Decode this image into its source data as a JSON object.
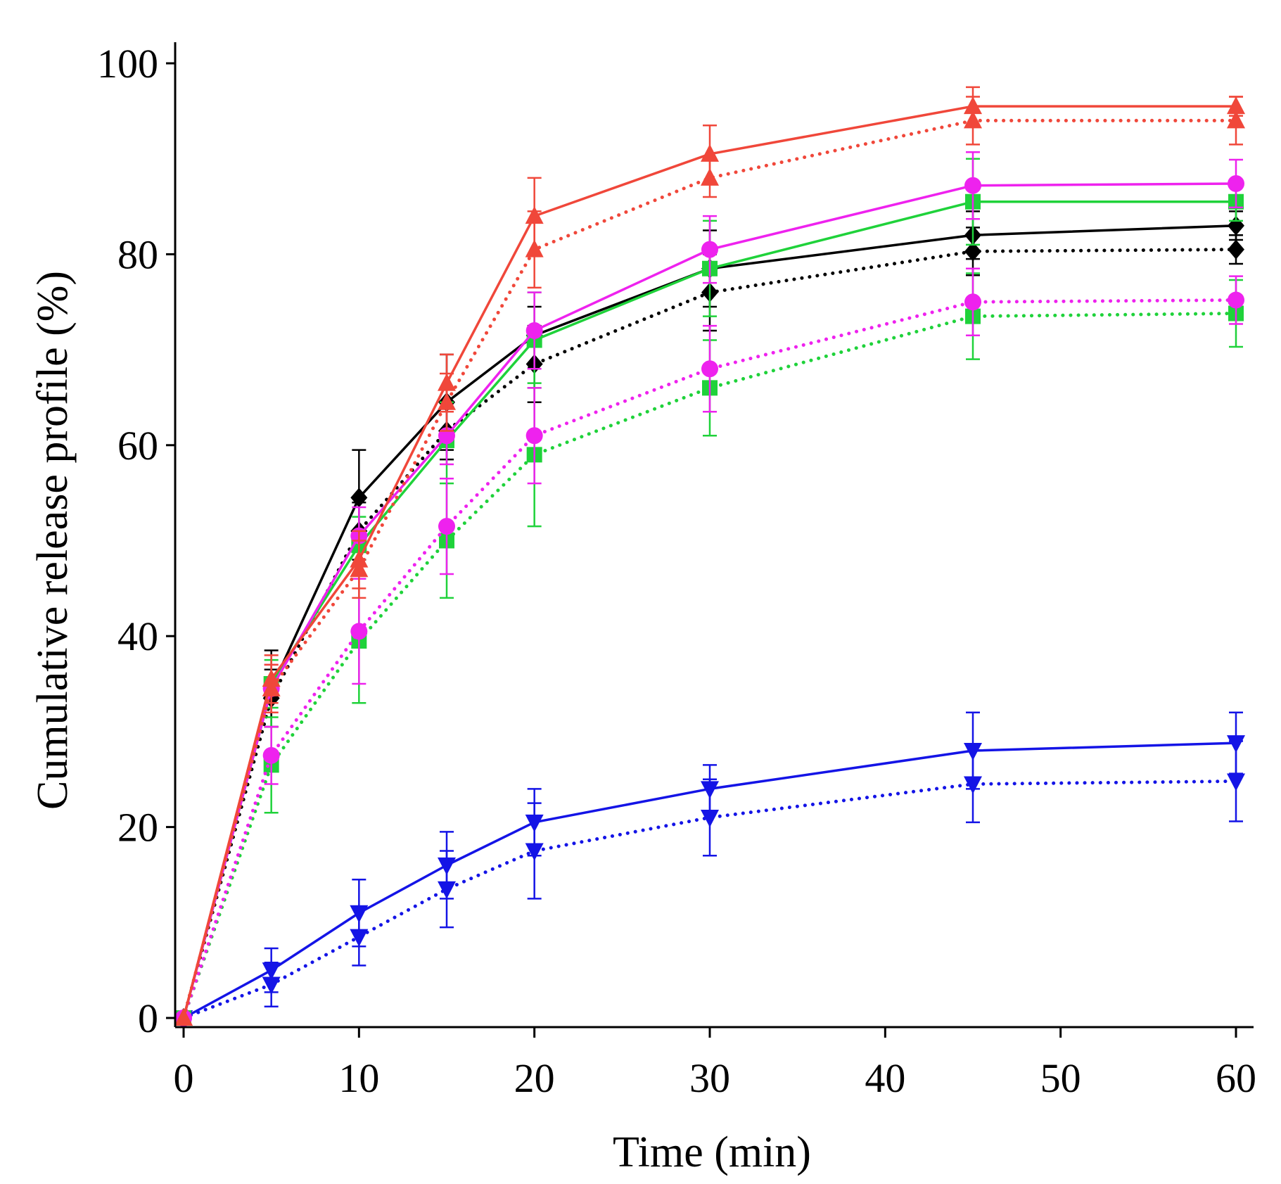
{
  "chart_data": {
    "type": "line",
    "title": "",
    "xlabel": "Time (min)",
    "ylabel": "Cumulative release profile (%)",
    "xlim": [
      -0.5,
      60.5
    ],
    "ylim": [
      0,
      100
    ],
    "xticks": [
      0,
      10,
      20,
      30,
      40,
      50,
      60
    ],
    "yticks": [
      0,
      20,
      40,
      60,
      80,
      100
    ],
    "grid": false,
    "legend": "none",
    "x": [
      0,
      5,
      10,
      15,
      20,
      30,
      45,
      60
    ],
    "series": [
      {
        "name": "red-solid",
        "color": "#f0473a",
        "dash": "solid",
        "marker": "triangle-up",
        "values": [
          0,
          35.5,
          48,
          66.5,
          84,
          90.5,
          95.5,
          95.5
        ],
        "errors": [
          0,
          2.5,
          3,
          3,
          4,
          3,
          2,
          1
        ]
      },
      {
        "name": "red-dotted",
        "color": "#f0473a",
        "dash": "dotted",
        "marker": "triangle-up",
        "values": [
          0,
          34.5,
          47,
          64.5,
          80.5,
          88,
          94,
          94
        ],
        "errors": [
          0,
          2.5,
          3,
          3,
          4,
          2,
          2.5,
          2.5
        ]
      },
      {
        "name": "magenta-solid",
        "color": "#ee22ee",
        "dash": "solid",
        "marker": "circle",
        "values": [
          0,
          34.5,
          50.5,
          61,
          72,
          80.5,
          87.2,
          87.4
        ],
        "errors": [
          0,
          2.5,
          3,
          3,
          4,
          3.5,
          3.5,
          2.5
        ]
      },
      {
        "name": "magenta-dotted",
        "color": "#ee22ee",
        "dash": "dotted",
        "marker": "circle",
        "values": [
          0,
          27.5,
          40.5,
          51.5,
          61,
          68,
          75,
          75.2
        ],
        "errors": [
          0,
          3,
          5.5,
          5,
          5,
          4.5,
          3.5,
          2.5
        ]
      },
      {
        "name": "green-solid",
        "color": "#1fd23a",
        "dash": "solid",
        "marker": "square",
        "values": [
          0,
          35,
          49.5,
          60.5,
          71,
          78.5,
          85.5,
          85.5
        ],
        "errors": [
          0,
          2.5,
          3,
          4,
          5,
          5,
          4.5,
          2
        ]
      },
      {
        "name": "green-dotted",
        "color": "#1fd23a",
        "dash": "dotted",
        "marker": "square",
        "values": [
          0,
          26.5,
          39.5,
          50,
          59,
          66,
          73.5,
          73.8
        ],
        "errors": [
          0,
          5,
          6.5,
          6,
          7.5,
          5,
          4.5,
          3.5
        ]
      },
      {
        "name": "black-solid",
        "color": "#000000",
        "dash": "solid",
        "marker": "diamond",
        "values": [
          0,
          34.5,
          54.5,
          64.5,
          71.5,
          78.5,
          82,
          83
        ],
        "errors": [
          0,
          4,
          5,
          5,
          3,
          4,
          2.5,
          1.5
        ]
      },
      {
        "name": "black-dotted",
        "color": "#000000",
        "dash": "dotted",
        "marker": "diamond",
        "values": [
          0,
          33.5,
          51,
          61.5,
          68.5,
          76,
          80.3,
          80.5
        ],
        "errors": [
          0,
          3,
          3,
          3,
          4,
          4,
          2.5,
          1.5
        ]
      },
      {
        "name": "blue-solid",
        "color": "#1414e6",
        "dash": "solid",
        "marker": "triangle-down",
        "values": [
          0,
          5,
          11,
          16,
          20.5,
          24,
          28,
          28.8
        ],
        "errors": [
          0,
          2.3,
          3.5,
          3.5,
          3.5,
          2.5,
          4,
          3.2
        ]
      },
      {
        "name": "blue-dotted",
        "color": "#1414e6",
        "dash": "dotted",
        "marker": "triangle-down",
        "values": [
          0,
          3.5,
          8.5,
          13.5,
          17.5,
          21,
          24.5,
          24.8
        ],
        "errors": [
          0,
          2.3,
          3,
          4,
          5,
          4,
          4,
          4.2
        ]
      }
    ]
  }
}
